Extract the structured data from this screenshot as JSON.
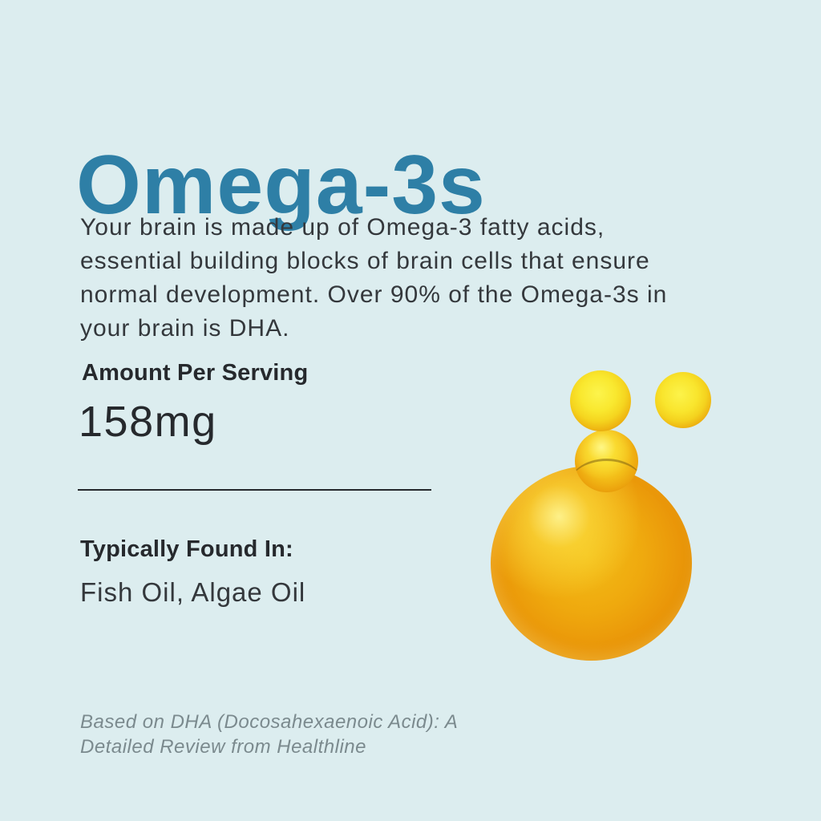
{
  "canvas": {
    "background_color": "#dcedef"
  },
  "colors": {
    "accent_blue": "#2e7fa6",
    "body_text": "#34383c",
    "dark_text": "#26292d",
    "muted_gray": "#7b8a8e",
    "oil_bright_yellow": "#fcf44c",
    "oil_amber": "#efa90e",
    "oil_edge_brown": "#6f5712"
  },
  "content": {
    "title": "Omega-3s",
    "description_lines": [
      "Your brain is made up of Omega-3 fatty acids,",
      "essential building blocks of brain cells that ensure",
      "normal development. Over 90% of the Omega-3s in",
      "your brain is DHA."
    ],
    "serving": {
      "label": "Amount Per Serving",
      "value": "158mg"
    },
    "found_in": {
      "label": "Typically Found In:",
      "value": "Fish Oil, Algae Oil"
    },
    "footnote_lines": [
      "Based on DHA (Docosahexaenoic Acid): A",
      "Detailed Review from Healthline"
    ],
    "illustration": "golden-oil-droplets"
  }
}
